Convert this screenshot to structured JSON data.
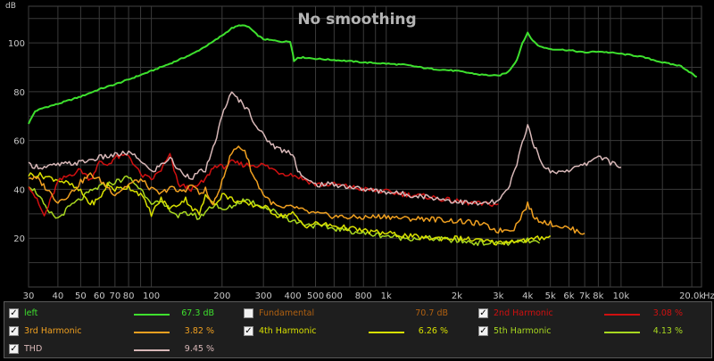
{
  "chart_data": {
    "type": "line",
    "title": "No smoothing",
    "xlabel": "Hz",
    "ylabel": "dB",
    "x_scale": "log",
    "xlim": [
      30,
      22000
    ],
    "ylim": [
      0,
      115
    ],
    "grid": true,
    "y_ticks": [
      "20",
      "40",
      "60",
      "80",
      "100"
    ],
    "x_ticks": [
      {
        "v": 30,
        "t": "30"
      },
      {
        "v": 40,
        "t": "40"
      },
      {
        "v": 50,
        "t": "50"
      },
      {
        "v": 60,
        "t": "60"
      },
      {
        "v": 70,
        "t": "70"
      },
      {
        "v": 80,
        "t": "80"
      },
      {
        "v": 100,
        "t": "100"
      },
      {
        "v": 200,
        "t": "200"
      },
      {
        "v": 300,
        "t": "300"
      },
      {
        "v": 400,
        "t": "400"
      },
      {
        "v": 500,
        "t": "500"
      },
      {
        "v": 600,
        "t": "600"
      },
      {
        "v": 800,
        "t": "800"
      },
      {
        "v": 1000,
        "t": "1k"
      },
      {
        "v": 2000,
        "t": "2k"
      },
      {
        "v": 3000,
        "t": "3k"
      },
      {
        "v": 4000,
        "t": "4k"
      },
      {
        "v": 5000,
        "t": "5k"
      },
      {
        "v": 6000,
        "t": "6k"
      },
      {
        "v": 7000,
        "t": "7k"
      },
      {
        "v": 8000,
        "t": "8k"
      },
      {
        "v": 10000,
        "t": "10k"
      },
      {
        "v": 20000,
        "t": "20.0k"
      }
    ],
    "series": [
      {
        "name": "left",
        "color": "#3ee02e",
        "x": [
          30,
          32,
          35,
          40,
          50,
          60,
          70,
          80,
          100,
          120,
          150,
          180,
          200,
          220,
          240,
          260,
          280,
          300,
          330,
          360,
          390,
          400,
          405,
          420,
          450,
          500,
          600,
          700,
          800,
          1000,
          1200,
          1500,
          2000,
          2500,
          3000,
          3300,
          3600,
          3800,
          4000,
          4200,
          4500,
          5000,
          6000,
          7000,
          8000,
          9000,
          10000,
          12000,
          15000,
          18000,
          21000
        ],
        "y": [
          67,
          72,
          73.5,
          75,
          78,
          81,
          83,
          85,
          88.5,
          91.5,
          95.5,
          100,
          103,
          106,
          107.3,
          106.5,
          103.5,
          101.5,
          101,
          100.5,
          100.5,
          96,
          92.5,
          94,
          94,
          93.5,
          93,
          92.5,
          92,
          91.5,
          91,
          89.5,
          88.5,
          87,
          86.5,
          88,
          93,
          100,
          104,
          101,
          98.5,
          97.5,
          97,
          96,
          96.5,
          96,
          95.5,
          94.5,
          92,
          90.5,
          86
        ]
      },
      {
        "name": "2nd Harmonic",
        "color": "#d01010",
        "x": [
          30,
          32,
          35,
          40,
          45,
          50,
          55,
          60,
          65,
          70,
          80,
          90,
          100,
          110,
          120,
          130,
          140,
          150,
          160,
          170,
          180,
          190,
          200,
          220,
          250,
          300,
          350,
          400,
          450,
          500,
          600,
          700,
          800,
          1000,
          1200,
          1500,
          2000,
          2500,
          3000
        ],
        "y": [
          42,
          37,
          29,
          43,
          46,
          48,
          44,
          51,
          50,
          53,
          54,
          46,
          44,
          48,
          54,
          42,
          41,
          40,
          42,
          44,
          48,
          50,
          49,
          51,
          50,
          50,
          47,
          46,
          44,
          42,
          42,
          41,
          40,
          39,
          38,
          37,
          35,
          34,
          34
        ]
      },
      {
        "name": "3rd Harmonic",
        "color": "#f0a020",
        "x": [
          30,
          33,
          36,
          40,
          45,
          50,
          55,
          60,
          65,
          70,
          80,
          90,
          100,
          110,
          120,
          130,
          140,
          150,
          160,
          170,
          180,
          190,
          200,
          220,
          235,
          250,
          270,
          300,
          330,
          360,
          400,
          450,
          500,
          600,
          700,
          800,
          1000,
          1200,
          1500,
          2000,
          2500,
          3000,
          3500,
          3800,
          4000,
          4300,
          5000,
          6000,
          7000
        ],
        "y": [
          45,
          44,
          40,
          35,
          38,
          43,
          46,
          44,
          41,
          38,
          42,
          44,
          40,
          38,
          41,
          39,
          40,
          42,
          38,
          40,
          34,
          36,
          44,
          55,
          57.5,
          56,
          46,
          38,
          34,
          32,
          33,
          31,
          30,
          29,
          28.5,
          28.5,
          29,
          28,
          28,
          27,
          26,
          23,
          24,
          30,
          34,
          28,
          26,
          24,
          22
        ]
      },
      {
        "name": "4th Harmonic",
        "color": "#d8e000",
        "x": [
          30,
          33,
          36,
          40,
          45,
          50,
          55,
          60,
          65,
          70,
          80,
          90,
          100,
          110,
          120,
          130,
          140,
          150,
          160,
          170,
          180,
          190,
          200,
          220,
          250,
          300,
          350,
          400,
          450,
          500,
          600,
          700,
          800,
          1000,
          1200,
          1500,
          2000,
          2500,
          3000,
          3500,
          4000,
          4500,
          5000
        ],
        "y": [
          46,
          46,
          45,
          44,
          42,
          39,
          34,
          36,
          42,
          40,
          41,
          38,
          30,
          36,
          32,
          34,
          36,
          32,
          30,
          37,
          36,
          34,
          38,
          36,
          34,
          33,
          29,
          30,
          25,
          26,
          25,
          24,
          23,
          22,
          21,
          20,
          20,
          19,
          18,
          19,
          19,
          20,
          21
        ]
      },
      {
        "name": "5th Harmonic",
        "color": "#a8d820",
        "x": [
          30,
          33,
          36,
          40,
          45,
          50,
          55,
          60,
          70,
          80,
          90,
          100,
          110,
          120,
          130,
          140,
          150,
          160,
          170,
          180,
          190,
          200,
          220,
          250,
          300,
          350,
          400,
          450,
          500,
          600,
          700,
          800,
          1000,
          1200,
          1500,
          2000,
          2500,
          3000,
          3500,
          4000,
          4500
        ],
        "y": [
          42,
          38,
          31,
          28,
          33,
          36,
          39,
          41,
          43,
          45,
          40,
          35,
          34,
          32,
          29,
          30,
          30,
          28,
          31,
          33,
          34,
          31,
          33,
          36,
          33,
          30,
          27,
          26,
          25,
          24,
          23,
          22,
          21,
          20,
          20,
          19,
          18,
          18,
          18,
          19,
          18
        ]
      },
      {
        "name": "THD",
        "color": "#d8b8b8",
        "x": [
          30,
          35,
          40,
          50,
          60,
          70,
          80,
          90,
          100,
          110,
          120,
          130,
          140,
          150,
          160,
          170,
          180,
          190,
          200,
          210,
          220,
          240,
          260,
          280,
          300,
          330,
          360,
          400,
          420,
          450,
          500,
          600,
          700,
          800,
          1000,
          1200,
          1500,
          2000,
          2500,
          3000,
          3300,
          3600,
          3800,
          4000,
          4200,
          4500,
          5000,
          6000,
          7000,
          8000,
          9000,
          10000
        ],
        "y": [
          50,
          49,
          50,
          51,
          53,
          54,
          55,
          52,
          47,
          50,
          53,
          48,
          46,
          45,
          47,
          48,
          54,
          62,
          70,
          76,
          79,
          76,
          72,
          66,
          62,
          58,
          56,
          55,
          48,
          44,
          42,
          42,
          41,
          40,
          39,
          38,
          37,
          35,
          34,
          35,
          40,
          50,
          60,
          66,
          60,
          52,
          47,
          48,
          50,
          54,
          51,
          49
        ]
      }
    ]
  },
  "legend": [
    {
      "label": "left",
      "checked": true,
      "color": "#3ee02e",
      "value": "67.3 dB"
    },
    {
      "label": "Fundamental",
      "checked": false,
      "color": "#b06010",
      "value": "70.7 dB"
    },
    {
      "label": "2nd Harmonic",
      "checked": true,
      "color": "#d01010",
      "value": "3.08 %"
    },
    {
      "label": "3rd Harmonic",
      "checked": true,
      "color": "#f0a020",
      "value": "3.82 %"
    },
    {
      "label": "4th Harmonic",
      "checked": true,
      "color": "#d8e000",
      "value": "6.26 %"
    },
    {
      "label": "5th Harmonic",
      "checked": true,
      "color": "#a8d820",
      "value": "4.13 %"
    },
    {
      "label": "THD",
      "checked": true,
      "color": "#d8b8b8",
      "value": "9.45 %"
    }
  ]
}
